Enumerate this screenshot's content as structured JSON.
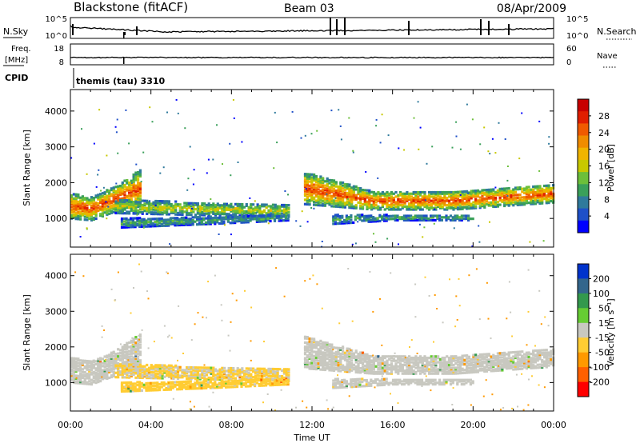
{
  "header": {
    "station": "Blackstone (fitACF)",
    "beam": "Beam 03",
    "date": "08/Apr/2009"
  },
  "params": {
    "nsky_label": "N.Sky",
    "nsky_ticks": [
      "10^5",
      "10^0"
    ],
    "nsearch_label": "N.Search",
    "freq_label": "Freq.",
    "freq_unit": "[MHz]",
    "freq_ticks": [
      "18",
      "8"
    ],
    "nave_label": "Nave",
    "nave_ticks": [
      "60",
      "0"
    ],
    "cpid_label": "CPID",
    "cpid_value": "themis (tau) 3310"
  },
  "colors": {
    "power": [
      "#0000ff",
      "#1e50c8",
      "#2f7a9c",
      "#3aa05a",
      "#6cbf3a",
      "#c8c800",
      "#f0b400",
      "#f08c00",
      "#f05a00",
      "#e01e00",
      "#c80000"
    ],
    "velocity": [
      "#ff0000",
      "#ff6000",
      "#ff9900",
      "#ffcc33",
      "#c8c8c0",
      "#66cc33",
      "#33994d",
      "#33668c",
      "#0033cc"
    ]
  },
  "chart_data": [
    {
      "type": "heatmap",
      "parameter": "power",
      "ylabel": "Slant Range [km]",
      "yticks": [
        1000,
        2000,
        3000,
        4000
      ],
      "ylim": [
        200,
        4600
      ],
      "xlim": [
        0,
        24
      ],
      "xticks": [
        "00:00",
        "04:00",
        "08:00",
        "12:00",
        "16:00",
        "20:00",
        "00:00"
      ],
      "colorbar": {
        "label": "Power [dB]",
        "ticks": [
          "28",
          "24",
          "20",
          "16",
          "12",
          "8",
          "4"
        ],
        "range": [
          0,
          30
        ]
      },
      "echo_bands": [
        {
          "t": [
            0.0,
            1.0,
            2.2,
            3.5
          ],
          "lo": [
            1000,
            950,
            1200,
            1350
          ],
          "hi": [
            1700,
            1600,
            1900,
            2400
          ],
          "peak_db": 26
        },
        {
          "t": [
            2.2,
            6.0,
            10.8
          ],
          "lo": [
            1150,
            1100,
            1050
          ],
          "hi": [
            1550,
            1450,
            1400
          ],
          "peak_db": 16
        },
        {
          "t": [
            2.5,
            7.0,
            10.8
          ],
          "lo": [
            750,
            850,
            950
          ],
          "hi": [
            1000,
            1050,
            1100
          ],
          "peak_db": 10
        },
        {
          "t": [
            11.6,
            15.0,
            19.0,
            24.0
          ],
          "lo": [
            1400,
            1250,
            1250,
            1450
          ],
          "hi": [
            2300,
            1750,
            1750,
            1950
          ],
          "peak_db": 26
        },
        {
          "t": [
            13.0,
            16.0,
            20.0
          ],
          "lo": [
            850,
            950,
            950
          ],
          "hi": [
            1100,
            1100,
            1100
          ],
          "peak_db": 10
        }
      ]
    },
    {
      "type": "heatmap",
      "parameter": "velocity",
      "ylabel": "Slant Range [km]",
      "yticks": [
        1000,
        2000,
        3000,
        4000
      ],
      "ylim": [
        200,
        4600
      ],
      "xlim": [
        0,
        24
      ],
      "xlabel": "Time UT",
      "xticks": [
        "00:00",
        "04:00",
        "08:00",
        "12:00",
        "16:00",
        "20:00",
        "00:00"
      ],
      "colorbar": {
        "label": "Velocity [m s⁻¹]",
        "ticks": [
          "200",
          "100",
          "50",
          "15",
          "-15",
          "-50",
          "-100",
          "-200"
        ],
        "range": [
          -250,
          250
        ]
      },
      "echo_bands": [
        {
          "t": [
            0.0,
            1.0,
            2.2,
            3.5
          ],
          "lo": [
            1000,
            950,
            1200,
            1350
          ],
          "hi": [
            1700,
            1600,
            1900,
            2400
          ],
          "mean_v": 0
        },
        {
          "t": [
            2.2,
            6.0,
            10.8
          ],
          "lo": [
            1150,
            1100,
            1050
          ],
          "hi": [
            1550,
            1450,
            1400
          ],
          "mean_v": -40
        },
        {
          "t": [
            2.5,
            7.0,
            10.8
          ],
          "lo": [
            750,
            850,
            950
          ],
          "hi": [
            1000,
            1050,
            1100
          ],
          "mean_v": -60
        },
        {
          "t": [
            11.6,
            15.0,
            19.0,
            24.0
          ],
          "lo": [
            1400,
            1250,
            1250,
            1450
          ],
          "hi": [
            2300,
            1750,
            1750,
            1950
          ],
          "mean_v": 0
        },
        {
          "t": [
            13.0,
            16.0,
            20.0
          ],
          "lo": [
            850,
            950,
            950
          ],
          "hi": [
            1100,
            1100,
            1100
          ],
          "mean_v": 0
        }
      ]
    }
  ]
}
